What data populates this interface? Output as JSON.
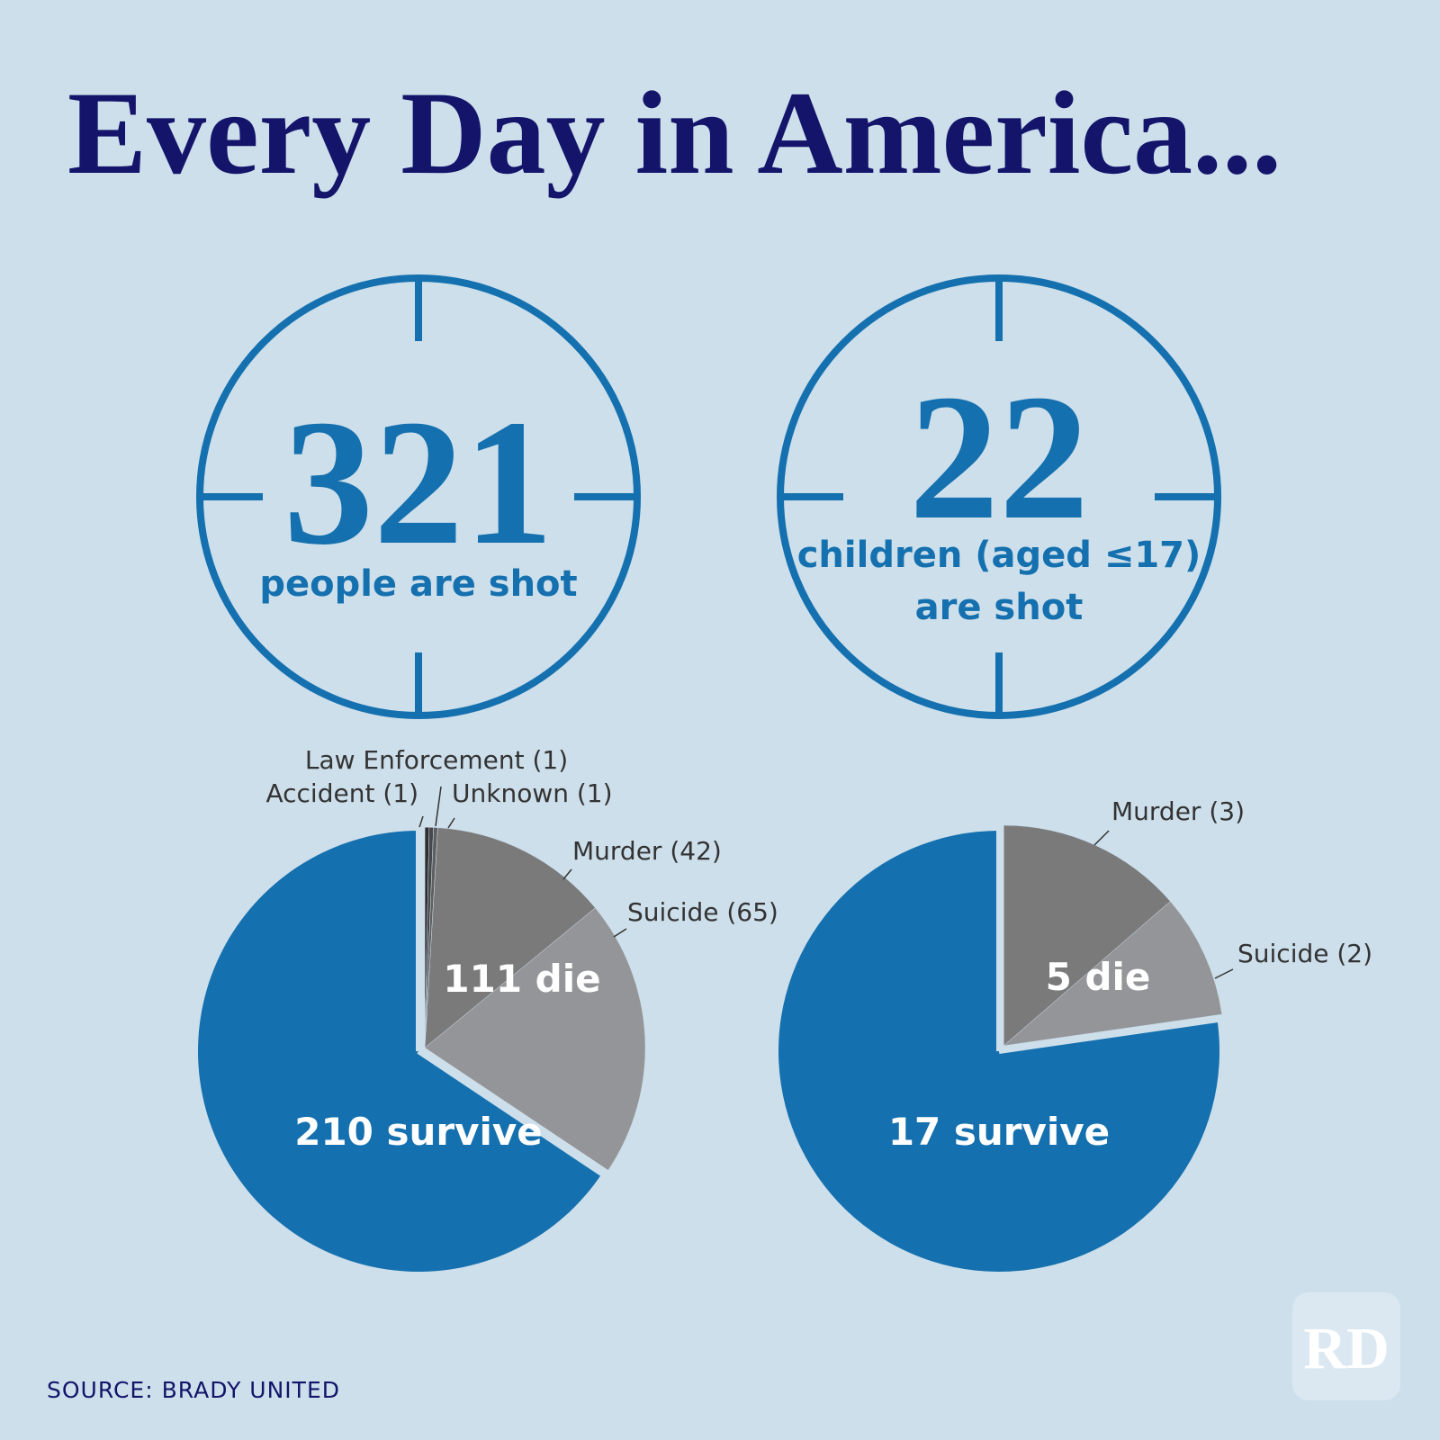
{
  "title": "Every Day in America...",
  "stats": [
    {
      "value": 321,
      "lines": [
        "people are shot"
      ]
    },
    {
      "value": 22,
      "lines": [
        "children (aged ≤17)",
        "are shot"
      ]
    }
  ],
  "chart_data": [
    {
      "type": "pie",
      "categories": [
        "Accident",
        "Law Enforcement",
        "Unknown",
        "Murder",
        "Suicide",
        "survive"
      ],
      "values": [
        1,
        1,
        1,
        42,
        65,
        210
      ],
      "value_labels": [
        "Accident (1)",
        "Law Enforcement (1)",
        "Unknown (1)",
        "Murder (42)",
        "Suicide (65)",
        "210 survive"
      ],
      "colors": [
        "#2e2e30",
        "#48484a",
        "#5f5f62",
        "#7a7a7b",
        "#949598",
        "#1470ae"
      ],
      "group_label": "111 die"
    },
    {
      "type": "pie",
      "categories": [
        "Murder",
        "Suicide",
        "survive"
      ],
      "values": [
        3,
        2,
        17
      ],
      "value_labels": [
        "Murder (3)",
        "Suicide (2)",
        "17 survive"
      ],
      "colors": [
        "#7a7a7b",
        "#949598",
        "#1470ae"
      ],
      "group_label": "5 die"
    }
  ],
  "source": "SOURCE: BRADY UNITED",
  "logo": "RD"
}
